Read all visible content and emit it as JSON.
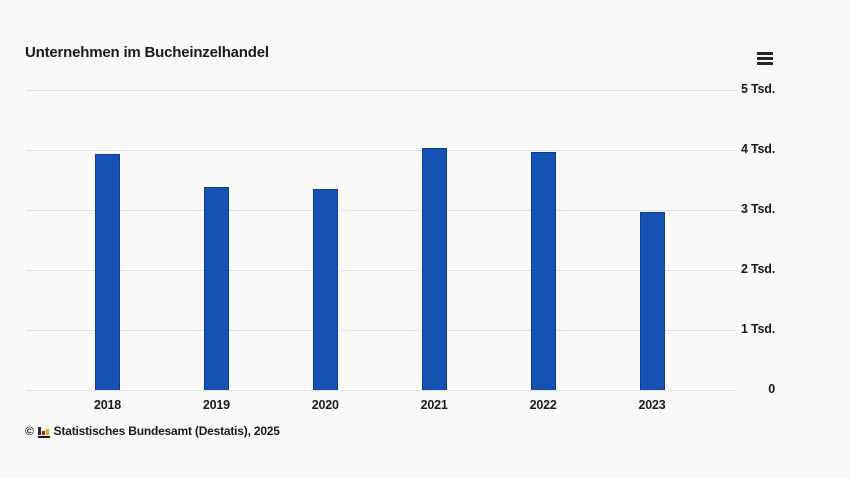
{
  "header": {
    "title": "Unternehmen im Bucheinzelhandel"
  },
  "menu": {
    "icon": "hamburger-icon"
  },
  "footer": {
    "copyright_symbol": "©",
    "logo": "destatis-logo",
    "source": "Statistisches Bundesamt (Destatis), 2025"
  },
  "colors": {
    "bar_fill": "#1552b4",
    "bar_border": "#0e3c98",
    "gridline": "#e0e0e0",
    "text": "#1a1a1a",
    "background": "#fafafa"
  },
  "chart_data": {
    "type": "bar",
    "title": "Unternehmen im Bucheinzelhandel",
    "categories": [
      "2018",
      "2019",
      "2020",
      "2021",
      "2022",
      "2023"
    ],
    "values": [
      3940,
      3390,
      3350,
      4030,
      3970,
      2960
    ],
    "xlabel": "",
    "ylabel": "",
    "ylim": [
      0,
      5000
    ],
    "yticks": [
      {
        "value": 0,
        "label": "0"
      },
      {
        "value": 1000,
        "label": "1 Tsd."
      },
      {
        "value": 2000,
        "label": "2 Tsd."
      },
      {
        "value": 3000,
        "label": "3 Tsd."
      },
      {
        "value": 4000,
        "label": "4 Tsd."
      },
      {
        "value": 5000,
        "label": "5 Tsd."
      }
    ],
    "grid": true,
    "legend": false,
    "legend_position": "none"
  }
}
